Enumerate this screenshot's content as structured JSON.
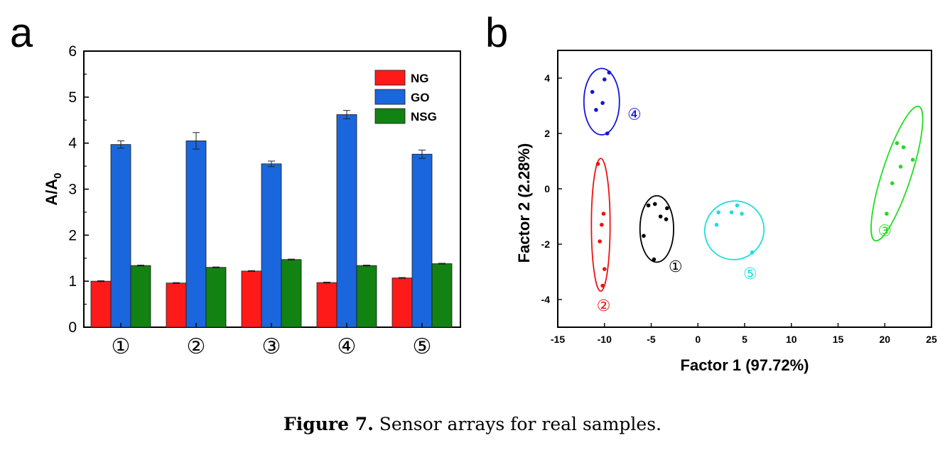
{
  "caption": {
    "label": "Figure 7.",
    "text": " Sensor arrays for real samples."
  },
  "chart_data": [
    {
      "panel": "a",
      "type": "bar",
      "ylabel": "A/A",
      "ylabel_sub": "0",
      "ylim": [
        0,
        6
      ],
      "yticks": [
        "0",
        "1",
        "2",
        "3",
        "4",
        "5",
        "6"
      ],
      "categories": [
        "①",
        "②",
        "③",
        "④",
        "⑤"
      ],
      "legend_position": "top-right",
      "series": [
        {
          "name": "NG",
          "color": "#ff1a1a",
          "values": [
            1.0,
            0.96,
            1.22,
            0.97,
            1.07
          ],
          "errors": [
            0.01,
            0.01,
            0.01,
            0.01,
            0.01
          ]
        },
        {
          "name": "GO",
          "color": "#1a66dd",
          "values": [
            3.97,
            4.05,
            3.55,
            4.62,
            3.76
          ],
          "errors": [
            0.08,
            0.18,
            0.06,
            0.09,
            0.09
          ]
        },
        {
          "name": "NSG",
          "color": "#128212",
          "values": [
            1.34,
            1.3,
            1.47,
            1.34,
            1.38
          ],
          "errors": [
            0.01,
            0.01,
            0.01,
            0.01,
            0.01
          ]
        }
      ]
    },
    {
      "panel": "b",
      "type": "scatter",
      "xlabel": "Factor 1 (97.72%)",
      "ylabel": "Factor 2 (2.28%)",
      "xlim": [
        -15,
        25
      ],
      "ylim": [
        -5,
        5
      ],
      "xticks": [
        "-15",
        "-10",
        "-5",
        "0",
        "5",
        "10",
        "15",
        "20",
        "25"
      ],
      "yticks": [
        "-4",
        "-2",
        "0",
        "2",
        "4"
      ],
      "series": [
        {
          "label": "①",
          "color": "#000000",
          "points": [
            [
              -5.8,
              -1.7
            ],
            [
              -5.3,
              -0.6
            ],
            [
              -4.6,
              -0.55
            ],
            [
              -4.0,
              -1.0
            ],
            [
              -3.3,
              -0.7
            ],
            [
              -3.4,
              -1.1
            ],
            [
              -4.7,
              -2.55
            ]
          ],
          "ellipse": {
            "cx": -4.4,
            "cy": -1.45,
            "rx": 1.8,
            "ry": 1.2,
            "angle": 0
          },
          "label_at": [
            -2.4,
            -2.8
          ]
        },
        {
          "label": "②",
          "color": "#ee1111",
          "points": [
            [
              -10.7,
              0.9
            ],
            [
              -10.1,
              -0.9
            ],
            [
              -10.3,
              -1.3
            ],
            [
              -10.5,
              -1.9
            ],
            [
              -10.0,
              -2.9
            ],
            [
              -10.2,
              -3.5
            ]
          ],
          "ellipse": {
            "cx": -10.4,
            "cy": -1.3,
            "rx": 1.0,
            "ry": 2.4,
            "angle": 0
          },
          "label_at": [
            -10.1,
            -4.2
          ]
        },
        {
          "label": "③",
          "color": "#22dd22",
          "points": [
            [
              21.3,
              1.65
            ],
            [
              22.0,
              1.5
            ],
            [
              21.7,
              0.8
            ],
            [
              23.0,
              1.05
            ],
            [
              20.8,
              0.2
            ],
            [
              20.2,
              -0.9
            ]
          ],
          "ellipse": {
            "cx": 21.3,
            "cy": 0.55,
            "rx": 1.55,
            "ry": 2.55,
            "angle": 18
          },
          "label_at": [
            20.0,
            -1.5
          ]
        },
        {
          "label": "④",
          "color": "#1515dd",
          "points": [
            [
              -9.5,
              4.2
            ],
            [
              -10.0,
              3.95
            ],
            [
              -11.3,
              3.5
            ],
            [
              -10.9,
              2.85
            ],
            [
              -10.2,
              3.1
            ],
            [
              -9.7,
              2.0
            ]
          ],
          "ellipse": {
            "cx": -10.3,
            "cy": 3.15,
            "rx": 1.9,
            "ry": 1.2,
            "angle": 0
          },
          "label_at": [
            -6.8,
            2.7
          ]
        },
        {
          "label": "⑤",
          "color": "#22dddd",
          "points": [
            [
              2.2,
              -0.85
            ],
            [
              3.6,
              -0.85
            ],
            [
              4.2,
              -0.6
            ],
            [
              4.7,
              -0.9
            ],
            [
              2.0,
              -1.3
            ],
            [
              5.8,
              -2.3
            ]
          ],
          "ellipse": {
            "cx": 3.9,
            "cy": -1.5,
            "rx": 3.2,
            "ry": 1.05,
            "angle": -35
          },
          "label_at": [
            5.6,
            -3.05
          ]
        }
      ]
    }
  ]
}
